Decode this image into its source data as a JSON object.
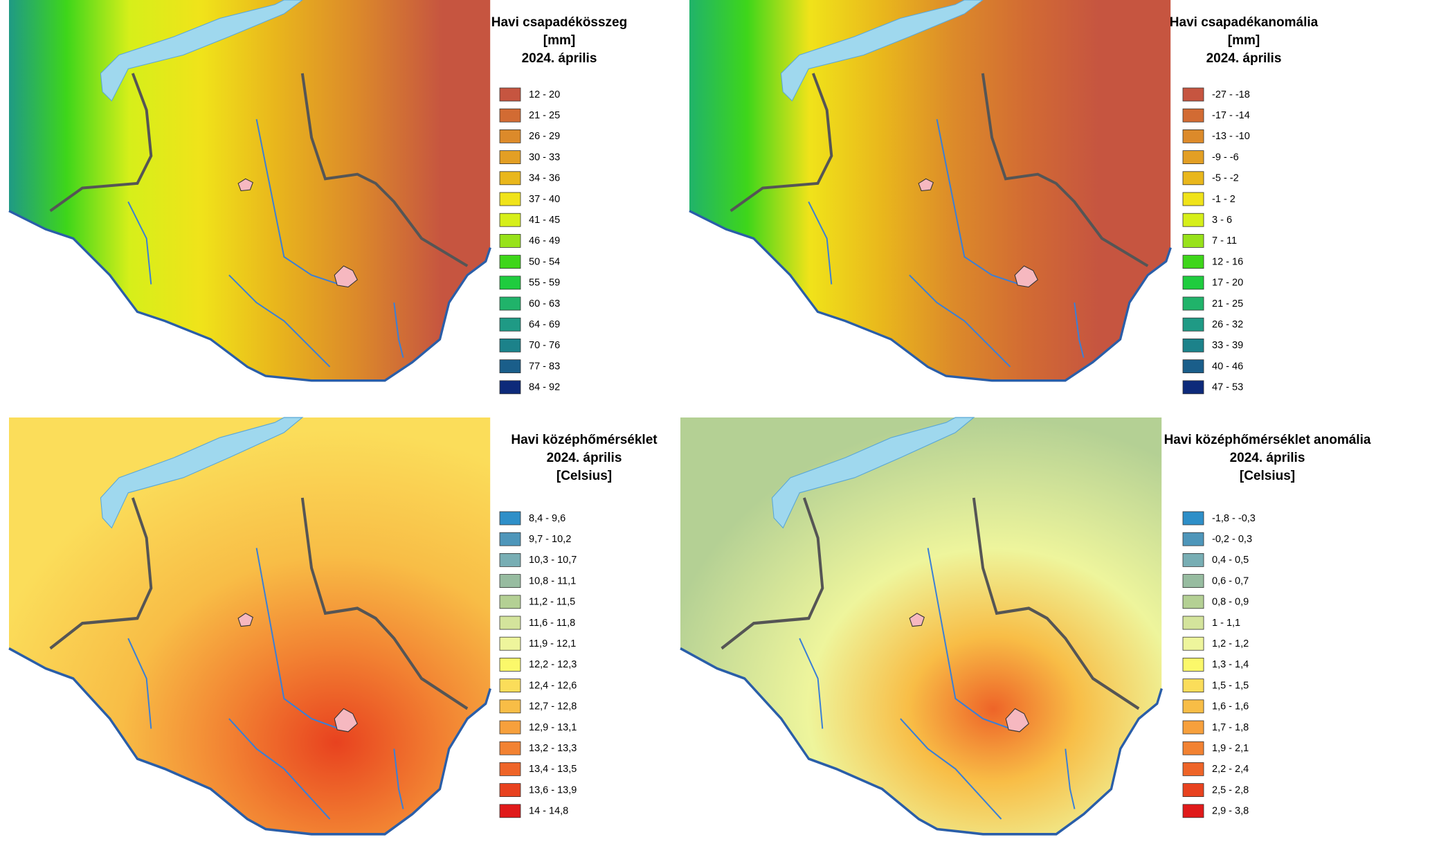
{
  "panels": [
    {
      "title": [
        "Havi csapadékösszeg",
        "[mm]",
        "2024. április"
      ],
      "legend": [
        {
          "label": "12 - 20",
          "color": "#c65540"
        },
        {
          "label": "21 - 25",
          "color": "#d26b33"
        },
        {
          "label": "26 - 29",
          "color": "#dc8a2a"
        },
        {
          "label": "30 - 33",
          "color": "#e39f24"
        },
        {
          "label": "34 - 36",
          "color": "#e9b71c"
        },
        {
          "label": "37 - 40",
          "color": "#f0e31a"
        },
        {
          "label": "41 - 45",
          "color": "#d6ef1a"
        },
        {
          "label": "46 - 49",
          "color": "#98e21a"
        },
        {
          "label": "50 - 54",
          "color": "#3ed61a"
        },
        {
          "label": "55 - 59",
          "color": "#1fcc3e"
        },
        {
          "label": "60 - 63",
          "color": "#20b36a"
        },
        {
          "label": "64 - 69",
          "color": "#1f9a85"
        },
        {
          "label": "70 - 76",
          "color": "#1c828a"
        },
        {
          "label": "77 - 83",
          "color": "#1a5e8a"
        },
        {
          "label": "84 - 92",
          "color": "#0d2a7a"
        }
      ]
    },
    {
      "title": [
        "Havi csapadékanomália",
        "[mm]",
        "2024. április"
      ],
      "legend": [
        {
          "label": "-27 - -18",
          "color": "#c65540"
        },
        {
          "label": "-17 - -14",
          "color": "#d26b33"
        },
        {
          "label": "-13 - -10",
          "color": "#dc8a2a"
        },
        {
          "label": "-9 - -6",
          "color": "#e39f24"
        },
        {
          "label": "-5 - -2",
          "color": "#e9b71c"
        },
        {
          "label": "-1 - 2",
          "color": "#f0e31a"
        },
        {
          "label": "3 - 6",
          "color": "#d6ef1a"
        },
        {
          "label": "7 - 11",
          "color": "#98e21a"
        },
        {
          "label": "12 - 16",
          "color": "#3ed61a"
        },
        {
          "label": "17 - 20",
          "color": "#1fcc3e"
        },
        {
          "label": "21 - 25",
          "color": "#20b36a"
        },
        {
          "label": "26 - 32",
          "color": "#1f9a85"
        },
        {
          "label": "33 - 39",
          "color": "#1c828a"
        },
        {
          "label": "40 - 46",
          "color": "#1a5e8a"
        },
        {
          "label": "47 - 53",
          "color": "#0d2a7a"
        }
      ]
    },
    {
      "title": [
        "Havi középhőmérséklet",
        "2024. április",
        "[Celsius]"
      ],
      "legend": [
        {
          "label": "8,4 - 9,6",
          "color": "#2e8fc8"
        },
        {
          "label": "9,7 - 10,2",
          "color": "#4e96ba"
        },
        {
          "label": "10,3 - 10,7",
          "color": "#78aeb4"
        },
        {
          "label": "10,8 - 11,1",
          "color": "#97bca0"
        },
        {
          "label": "11,2 - 11,5",
          "color": "#b4d094"
        },
        {
          "label": "11,6 - 11,8",
          "color": "#d4e49c"
        },
        {
          "label": "11,9 - 12,1",
          "color": "#eef59c"
        },
        {
          "label": "12,2 - 12,3",
          "color": "#fbf86a"
        },
        {
          "label": "12,4 - 12,6",
          "color": "#fbdd5a"
        },
        {
          "label": "12,7 - 12,8",
          "color": "#f8bd46"
        },
        {
          "label": "12,9 - 13,1",
          "color": "#f7a03c"
        },
        {
          "label": "13,2 - 13,3",
          "color": "#f28232"
        },
        {
          "label": "13,4 - 13,5",
          "color": "#ee6428"
        },
        {
          "label": "13,6 - 13,9",
          "color": "#e8421f"
        },
        {
          "label": "14 - 14,8",
          "color": "#e01a1a"
        }
      ]
    },
    {
      "title": [
        "Havi középhőmérséklet anomália",
        "2024. április",
        "[Celsius]"
      ],
      "legend": [
        {
          "label": "-1,8 - -0,3",
          "color": "#2e8fc8"
        },
        {
          "label": "-0,2 - 0,3",
          "color": "#4e96ba"
        },
        {
          "label": "0,4 - 0,5",
          "color": "#78aeb4"
        },
        {
          "label": "0,6 - 0,7",
          "color": "#97bca0"
        },
        {
          "label": "0,8 - 0,9",
          "color": "#b4d094"
        },
        {
          "label": "1 - 1,1",
          "color": "#d4e49c"
        },
        {
          "label": "1,2 - 1,2",
          "color": "#eef59c"
        },
        {
          "label": "1,3 - 1,4",
          "color": "#fbf86a"
        },
        {
          "label": "1,5 - 1,5",
          "color": "#fbdd5a"
        },
        {
          "label": "1,6 - 1,6",
          "color": "#f8bd46"
        },
        {
          "label": "1,7 - 1,8",
          "color": "#f7a03c"
        },
        {
          "label": "1,9 - 2,1",
          "color": "#f28232"
        },
        {
          "label": "2,2 - 2,4",
          "color": "#ee6428"
        },
        {
          "label": "2,5 - 2,8",
          "color": "#e8421f"
        },
        {
          "label": "2,9 - 3,8",
          "color": "#e01a1a"
        }
      ]
    }
  ]
}
